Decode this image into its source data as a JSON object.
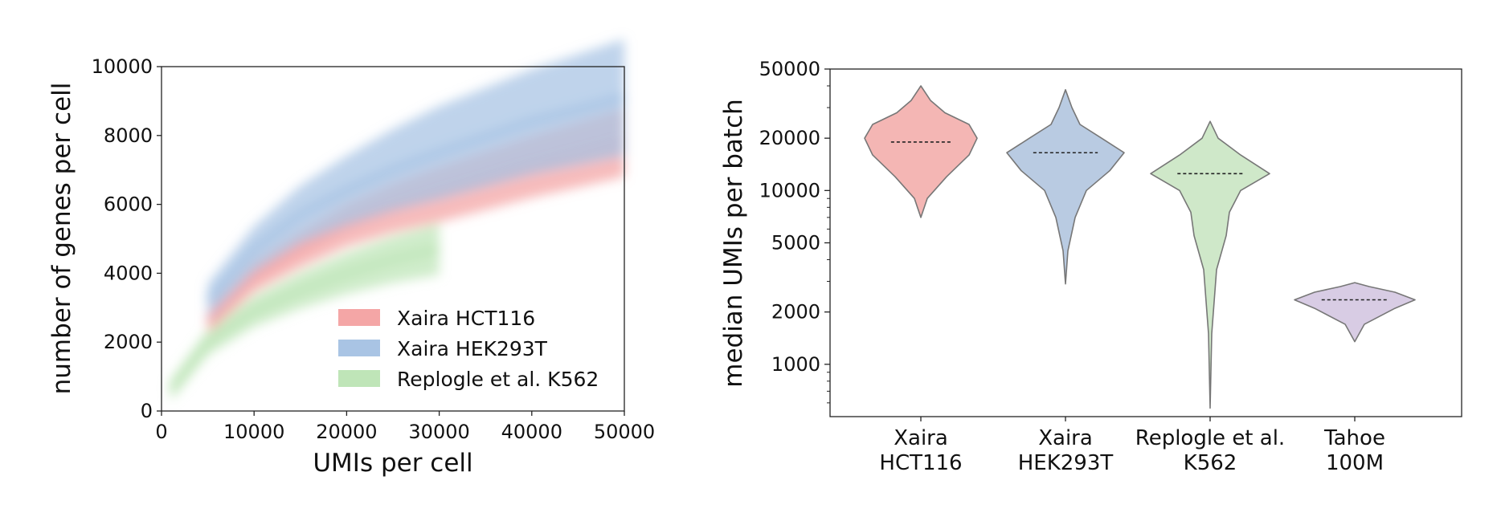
{
  "chart_data": [
    {
      "type": "scatter",
      "xlabel": "UMIs per cell",
      "ylabel": "number of genes per cell",
      "xlim": [
        0,
        50000
      ],
      "ylim": [
        0,
        10000
      ],
      "xticks": [
        "0",
        "10000",
        "20000",
        "30000",
        "40000",
        "50000"
      ],
      "yticks": [
        "0",
        "2000",
        "4000",
        "6000",
        "8000",
        "10000"
      ],
      "legend_position": "lower-right",
      "grid": false,
      "series": [
        {
          "name": "Xaira HCT116",
          "color": "#f4a6a6",
          "trend": {
            "x": [
              5000,
              10000,
              15000,
              20000,
              25000,
              30000,
              40000,
              50000
            ],
            "y": [
              2600,
              3900,
              4700,
              5400,
              5900,
              6300,
              7100,
              7800
            ]
          }
        },
        {
          "name": "Xaira HEK293T",
          "color": "#a9c4e4",
          "trend": {
            "x": [
              5000,
              10000,
              15000,
              20000,
              25000,
              30000,
              40000,
              50000
            ],
            "y": [
              3200,
              4700,
              5700,
              6400,
              7000,
              7500,
              8400,
              9100
            ]
          }
        },
        {
          "name": "Replogle et al. K562",
          "color": "#bfe5b8",
          "trend": {
            "x": [
              1000,
              5000,
              10000,
              15000,
              20000,
              25000,
              30000
            ],
            "y": [
              600,
              2000,
              2900,
              3500,
              4000,
              4400,
              4700
            ]
          }
        }
      ]
    },
    {
      "type": "violin",
      "ylabel": "median UMIs per batch",
      "yscale": "log",
      "ylim": [
        500,
        50000
      ],
      "yticks": [
        "1000",
        "2000",
        "5000",
        "10000",
        "20000",
        "50000"
      ],
      "categories": [
        "Xaira\nHCT116",
        "Xaira\nHEK293T",
        "Replogle et al.\nK562",
        "Tahoe\n100M"
      ],
      "series": [
        {
          "category_index": 0,
          "color": "#f4b6b4",
          "median": 19000,
          "min": 7000,
          "max": 40000
        },
        {
          "category_index": 1,
          "color": "#b9cbe2",
          "median": 16500,
          "min": 2900,
          "max": 38000
        },
        {
          "category_index": 2,
          "color": "#cfe8c9",
          "median": 12500,
          "min": 560,
          "max": 25000
        },
        {
          "category_index": 3,
          "color": "#d8cce4",
          "median": 2350,
          "min": 1350,
          "max": 2950
        }
      ]
    }
  ]
}
